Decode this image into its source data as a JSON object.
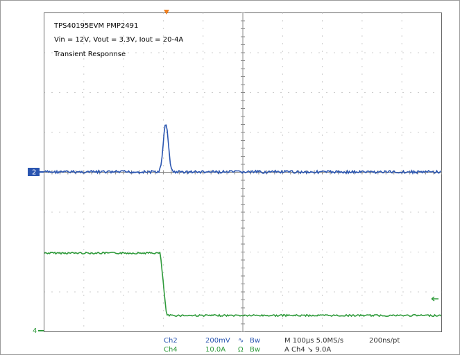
{
  "screen": {
    "title": "TPS40195EVM PMP2491",
    "conditions": "Vin = 12V, Vout = 3.3V, Iout = 20-4A",
    "label": "Transient Responnse",
    "marker_ch2": "2",
    "marker_ch4": "4",
    "ch2": {
      "name": "Ch2",
      "scale": "200mV",
      "coupling": "∿",
      "bw": "Bw"
    },
    "ch4": {
      "name": "Ch4",
      "scale": "10.0A",
      "coupling": "Ω",
      "bw": "Bw"
    },
    "timebase": "M 100µs 5.0MS/s",
    "record": "200ns/pt",
    "trigger": "A Ch4 ↘ 9.0A"
  }
}
